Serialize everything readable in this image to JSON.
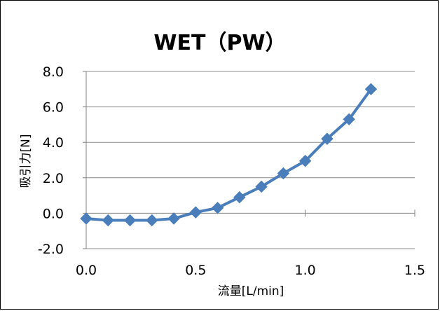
{
  "chart_data": {
    "type": "line",
    "title": "WET（PW）",
    "xlabel": "流量[L/min]",
    "ylabel": "吸引力[N]",
    "xlim": [
      0.0,
      1.5
    ],
    "ylim": [
      -2.0,
      8.0
    ],
    "x_ticks": [
      "0.0",
      "0.5",
      "1.0",
      "1.5"
    ],
    "y_ticks": [
      "-2.0",
      "0.0",
      "2.0",
      "4.0",
      "6.0",
      "8.0"
    ],
    "grid": "horizontal",
    "legend": "none",
    "series": [
      {
        "color": "#4a7ebb",
        "marker": "diamond",
        "x": [
          0.0,
          0.1,
          0.2,
          0.3,
          0.4,
          0.5,
          0.6,
          0.7,
          0.8,
          0.9,
          1.0,
          1.1,
          1.2,
          1.3
        ],
        "y": [
          -0.3,
          -0.4,
          -0.4,
          -0.4,
          -0.3,
          0.05,
          0.3,
          0.9,
          1.5,
          2.25,
          2.95,
          4.2,
          5.3,
          7.0
        ]
      }
    ]
  }
}
